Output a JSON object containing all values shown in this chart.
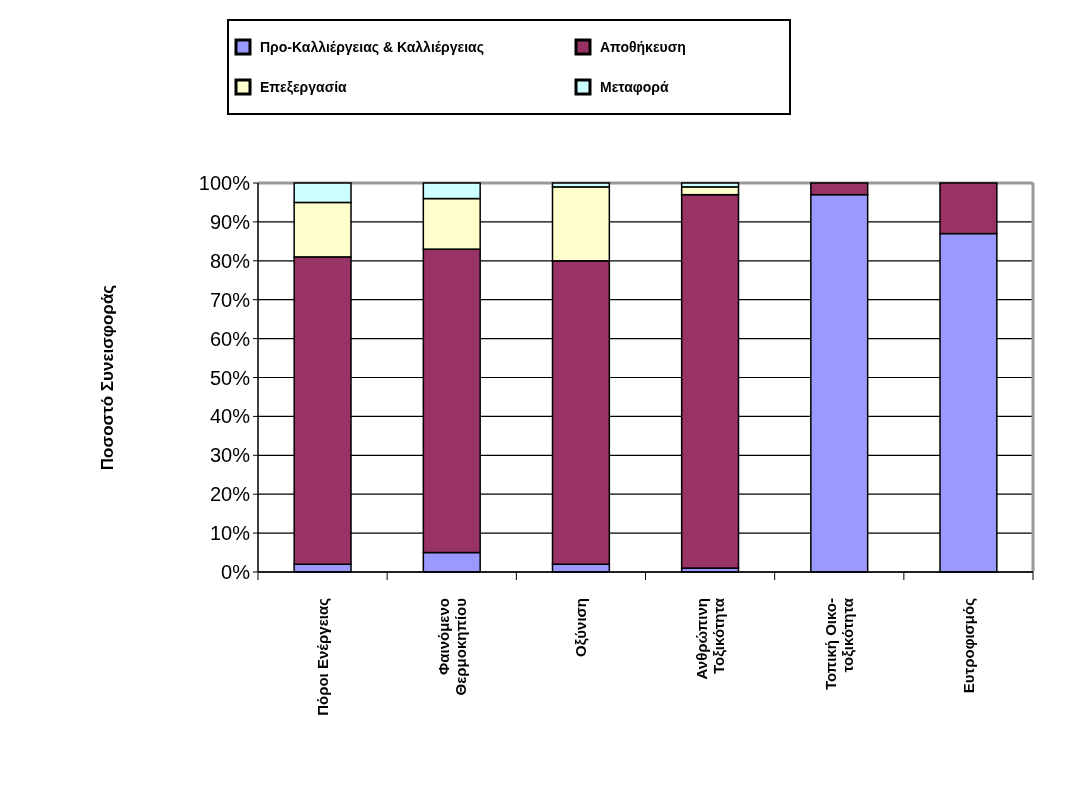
{
  "chart_data": {
    "type": "bar",
    "stacked": true,
    "ylabel": "Ποσοστό Συνεισφοράς",
    "categories": [
      "Πόροι Ενέργειας",
      "Φαινόμενο\nΘερμοκηπίου",
      "Οξύνιση",
      "Ανθρώπινη\nΤοξικότητα",
      "Τοπική Οικο-\nτοξικότητα",
      "Ευτροφισμός"
    ],
    "series": [
      {
        "name": "Προ-Καλλιέργειας & Καλλιέργειας",
        "color": "#9999ff",
        "values": [
          2,
          5,
          2,
          1,
          97,
          87
        ]
      },
      {
        "name": "Αποθήκευση",
        "color": "#993366",
        "values": [
          79,
          78,
          78,
          96,
          3,
          13
        ]
      },
      {
        "name": "Επεξεργασία",
        "color": "#ffffcc",
        "values": [
          14,
          13,
          19,
          2,
          0,
          0
        ]
      },
      {
        "name": "Μεταφορά",
        "color": "#ccffff",
        "values": [
          5,
          4,
          1,
          1,
          0,
          0
        ]
      }
    ],
    "ylim": [
      0,
      100
    ],
    "yticks": [
      {
        "value": 0,
        "label": "0%"
      },
      {
        "value": 10,
        "label": "10%"
      },
      {
        "value": 20,
        "label": "20%"
      },
      {
        "value": 30,
        "label": "30%"
      },
      {
        "value": 40,
        "label": "40%"
      },
      {
        "value": 50,
        "label": "50%"
      },
      {
        "value": 60,
        "label": "60%"
      },
      {
        "value": 70,
        "label": "70%"
      },
      {
        "value": 80,
        "label": "80%"
      },
      {
        "value": 90,
        "label": "90%"
      },
      {
        "value": 100,
        "label": "100%"
      }
    ],
    "grid": "y",
    "legend": "top"
  }
}
